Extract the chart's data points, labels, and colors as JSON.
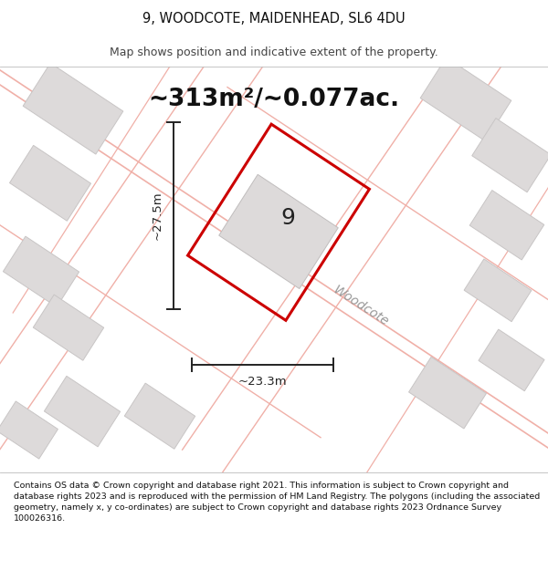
{
  "title_line1": "9, WOODCOTE, MAIDENHEAD, SL6 4DU",
  "title_line2": "Map shows position and indicative extent of the property.",
  "area_text": "~313m²/~0.077ac.",
  "dim_vertical": "~27.5m",
  "dim_horizontal": "~23.3m",
  "property_number": "9",
  "road_label": "Woodcote",
  "footer_text": "Contains OS data © Crown copyright and database right 2021. This information is subject to Crown copyright and database rights 2023 and is reproduced with the permission of HM Land Registry. The polygons (including the associated geometry, namely x, y co-ordinates) are subject to Crown copyright and database rights 2023 Ordnance Survey 100026316.",
  "map_bg": "#eeecec",
  "building_fill": "#dddada",
  "building_edge": "#c8c5c5",
  "road_line_color": "#f0b0a8",
  "main_plot_color": "#cc0000",
  "dim_line_color": "#222222",
  "title_area_bg": "#ffffff",
  "footer_bg": "#ffffff",
  "text_color": "#111111",
  "road_label_color": "#999999"
}
